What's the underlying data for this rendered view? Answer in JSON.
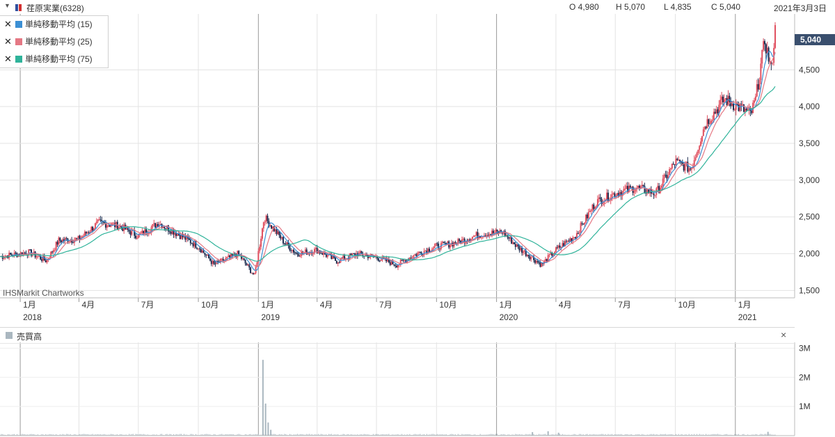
{
  "header": {
    "symbol": "荏原実業(6328)",
    "open": "O 4,980",
    "high": "H 5,070",
    "low": "L 4,835",
    "close": "C 5,040",
    "date": "2021年3月3日",
    "symbol_color": "#d32f2f"
  },
  "legend": [
    {
      "label": "単純移動平均 (15)",
      "color": "#3b8fd4"
    },
    {
      "label": "単純移動平均 (25)",
      "color": "#e57884"
    },
    {
      "label": "単純移動平均 (75)",
      "color": "#2fb39a"
    }
  ],
  "last_price_tag": "5,040",
  "watermark": "IHSMarkit Chartworks",
  "volume_panel": {
    "title": "売買高",
    "close_label": "×"
  },
  "chart_data": [
    {
      "type": "line",
      "title": "荏原実業(6328)",
      "series_style": "candlestick with moving averages",
      "x_axis": {
        "ticks": [
          "1月",
          "4月",
          "7月",
          "10月",
          "1月",
          "4月",
          "7月",
          "10月",
          "1月",
          "4月",
          "7月",
          "10月",
          "1月"
        ],
        "years": [
          "2018",
          "2019",
          "2020",
          "2021"
        ],
        "range": [
          "2017-12",
          "2021-03-03"
        ]
      },
      "y_axis": {
        "ticks": [
          "1,500",
          "2,000",
          "2,500",
          "3,000",
          "3,500",
          "4,000",
          "4,500",
          "5,040"
        ],
        "range": [
          1400,
          5260
        ]
      },
      "grid": true,
      "price_points": [
        {
          "x": "2017-12-01",
          "y": 1960
        },
        {
          "x": "2018-01-15",
          "y": 2020
        },
        {
          "x": "2018-02-10",
          "y": 1900
        },
        {
          "x": "2018-03-01",
          "y": 2180
        },
        {
          "x": "2018-04-01",
          "y": 2200
        },
        {
          "x": "2018-05-01",
          "y": 2420
        },
        {
          "x": "2018-06-01",
          "y": 2380
        },
        {
          "x": "2018-07-01",
          "y": 2240
        },
        {
          "x": "2018-08-01",
          "y": 2420
        },
        {
          "x": "2018-09-01",
          "y": 2260
        },
        {
          "x": "2018-10-01",
          "y": 2100
        },
        {
          "x": "2018-10-25",
          "y": 1850
        },
        {
          "x": "2018-12-01",
          "y": 2000
        },
        {
          "x": "2018-12-26",
          "y": 1700
        },
        {
          "x": "2019-01-10",
          "y": 2500
        },
        {
          "x": "2019-02-10",
          "y": 2150
        },
        {
          "x": "2019-03-01",
          "y": 2000
        },
        {
          "x": "2019-04-01",
          "y": 2050
        },
        {
          "x": "2019-05-01",
          "y": 1900
        },
        {
          "x": "2019-06-01",
          "y": 2000
        },
        {
          "x": "2019-07-01",
          "y": 1950
        },
        {
          "x": "2019-08-01",
          "y": 1850
        },
        {
          "x": "2019-09-01",
          "y": 2000
        },
        {
          "x": "2019-10-01",
          "y": 2100
        },
        {
          "x": "2019-11-01",
          "y": 2150
        },
        {
          "x": "2019-12-01",
          "y": 2250
        },
        {
          "x": "2020-01-10",
          "y": 2300
        },
        {
          "x": "2020-02-01",
          "y": 2100
        },
        {
          "x": "2020-03-10",
          "y": 1850
        },
        {
          "x": "2020-04-01",
          "y": 2050
        },
        {
          "x": "2020-05-01",
          "y": 2250
        },
        {
          "x": "2020-06-01",
          "y": 2700
        },
        {
          "x": "2020-07-01",
          "y": 2820
        },
        {
          "x": "2020-08-01",
          "y": 2900
        },
        {
          "x": "2020-09-01",
          "y": 2820
        },
        {
          "x": "2020-10-01",
          "y": 3250
        },
        {
          "x": "2020-10-25",
          "y": 3150
        },
        {
          "x": "2020-11-15",
          "y": 3750
        },
        {
          "x": "2020-12-15",
          "y": 4100
        },
        {
          "x": "2021-01-05",
          "y": 4000
        },
        {
          "x": "2021-01-25",
          "y": 3900
        },
        {
          "x": "2021-02-01",
          "y": 4100
        },
        {
          "x": "2021-02-15",
          "y": 4900
        },
        {
          "x": "2021-02-25",
          "y": 4500
        },
        {
          "x": "2021-03-03",
          "y": 5040
        }
      ],
      "volume": {
        "y_ticks": [
          "3M",
          "2M",
          "1M"
        ],
        "range": [
          0,
          3200000
        ],
        "spikes": [
          {
            "x": "2019-01-08",
            "y": 2600000
          },
          {
            "x": "2019-01-12",
            "y": 1100000
          },
          {
            "x": "2019-01-16",
            "y": 450000
          },
          {
            "x": "2019-01-20",
            "y": 200000
          },
          {
            "x": "2020-02-25",
            "y": 120000
          },
          {
            "x": "2020-03-20",
            "y": 150000
          },
          {
            "x": "2020-04-05",
            "y": 100000
          },
          {
            "x": "2021-02-20",
            "y": 130000
          }
        ]
      }
    }
  ]
}
